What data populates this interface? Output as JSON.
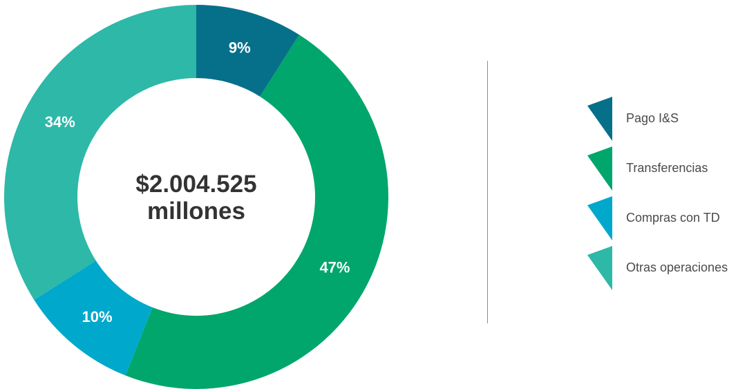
{
  "chart_data": {
    "type": "pie",
    "donut": true,
    "categories": [
      "Pago I&S",
      "Transferencias",
      "Compras con TD",
      "Otras operaciones"
    ],
    "values": [
      9,
      47,
      10,
      34
    ],
    "value_labels": [
      "9%",
      "47%",
      "10%",
      "34%"
    ],
    "colors": [
      "#06708a",
      "#00a66b",
      "#00a8cc",
      "#2db8a8"
    ],
    "center_label": [
      "$2.004.525",
      "millones"
    ],
    "legend_placement": "right"
  }
}
